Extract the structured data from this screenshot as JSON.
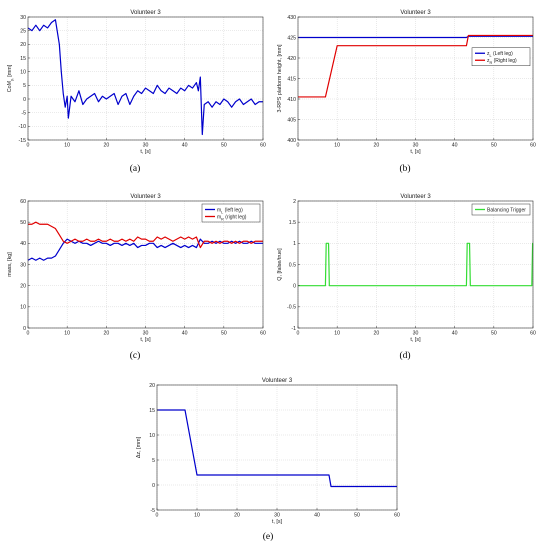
{
  "chart_data": [
    {
      "id": "a",
      "type": "line",
      "title": "Volunteer 3",
      "caption": "(a)",
      "xlabel": "t, [s]",
      "ylabel": "CoM_y, [mm]",
      "xlim": [
        0,
        60
      ],
      "ylim": [
        -15,
        30
      ],
      "xticks": [
        0,
        10,
        20,
        30,
        40,
        50,
        60
      ],
      "yticks": [
        -15,
        -10,
        -5,
        0,
        5,
        10,
        15,
        20,
        25,
        30
      ],
      "grid": true,
      "legend": null,
      "series": [
        {
          "color": "#0000cc",
          "x": [
            0,
            1,
            2,
            3,
            4,
            5,
            6,
            7,
            8,
            8.5,
            9,
            9.5,
            10,
            10.3,
            11,
            12,
            13,
            14,
            15,
            16,
            17,
            18,
            19,
            20,
            21,
            22,
            23,
            24,
            25,
            26,
            27,
            28,
            29,
            30,
            31,
            32,
            33,
            34,
            35,
            36,
            37,
            38,
            39,
            40,
            41,
            42,
            43,
            43.5,
            44,
            44.5,
            45,
            46,
            47,
            48,
            49,
            50,
            51,
            52,
            53,
            54,
            55,
            56,
            57,
            58,
            59,
            60
          ],
          "y": [
            26,
            25,
            27,
            25,
            27,
            26,
            28,
            29,
            20,
            10,
            2,
            -3,
            1,
            -7,
            1,
            -1,
            3,
            -2,
            0,
            1,
            2,
            -1,
            1,
            0,
            1,
            2,
            -2,
            1,
            2,
            -2,
            1,
            3,
            2,
            4,
            3,
            2,
            5,
            3,
            2,
            4,
            3,
            2,
            4,
            3,
            5,
            4,
            6,
            3,
            8,
            -13,
            -2,
            -1,
            -3,
            -1,
            -2,
            0,
            -1,
            -3,
            -1,
            0,
            -2,
            -1,
            0,
            -2,
            -1,
            -1
          ],
          "stroke_width": 1.2
        }
      ]
    },
    {
      "id": "b",
      "type": "line",
      "title": "Volunteer 3",
      "caption": "(b)",
      "xlabel": "t, [s]",
      "ylabel": "3-RPS platform height, [mm]",
      "xlim": [
        0,
        60
      ],
      "ylim": [
        400,
        430
      ],
      "xticks": [
        0,
        10,
        20,
        30,
        40,
        50,
        60
      ],
      "yticks": [
        400,
        405,
        410,
        415,
        420,
        425,
        430
      ],
      "grid": true,
      "legend": "mid-right",
      "series": [
        {
          "name": "z_L (Left leg)",
          "color": "#0000cc",
          "x": [
            0,
            43,
            43.5,
            60
          ],
          "y": [
            425,
            425,
            425.3,
            425.3
          ],
          "stroke_width": 1.2
        },
        {
          "name": "z_R (Right leg)",
          "color": "#e00000",
          "x": [
            0,
            7,
            10,
            43,
            43.5,
            60
          ],
          "y": [
            410.5,
            410.5,
            423,
            423,
            425.5,
            425.5
          ],
          "stroke_width": 1.2
        }
      ]
    },
    {
      "id": "c",
      "type": "line",
      "title": "Volunteer 3",
      "caption": "(c)",
      "xlabel": "t, [s]",
      "ylabel": "mass, [kg]",
      "xlim": [
        0,
        60
      ],
      "ylim": [
        0,
        60
      ],
      "xticks": [
        0,
        10,
        20,
        30,
        40,
        50,
        60
      ],
      "yticks": [
        0,
        10,
        20,
        30,
        40,
        50,
        60
      ],
      "grid": true,
      "legend": "top-right",
      "series": [
        {
          "name": "m_L (left leg)",
          "color": "#0000cc",
          "x": [
            0,
            1,
            2,
            3,
            4,
            5,
            6,
            7,
            8,
            9,
            10,
            11,
            12,
            13,
            14,
            15,
            16,
            17,
            18,
            19,
            20,
            21,
            22,
            23,
            24,
            25,
            26,
            27,
            28,
            29,
            30,
            31,
            32,
            33,
            34,
            35,
            36,
            37,
            38,
            39,
            40,
            41,
            42,
            43,
            44,
            45,
            46,
            47,
            48,
            49,
            50,
            51,
            52,
            53,
            54,
            55,
            56,
            57,
            58,
            59,
            60
          ],
          "y": [
            32,
            33,
            32,
            33,
            32,
            33,
            33,
            34,
            37,
            40,
            42,
            41,
            40,
            41,
            40,
            40,
            39,
            40,
            41,
            40,
            40,
            39,
            40,
            40,
            39,
            40,
            39,
            40,
            38,
            39,
            39,
            40,
            40,
            38,
            39,
            38,
            39,
            40,
            39,
            38,
            39,
            38,
            39,
            38,
            42,
            40,
            40,
            41,
            40,
            41,
            40,
            40,
            41,
            40,
            41,
            40,
            40,
            41,
            40,
            40,
            40
          ],
          "stroke_width": 1.2
        },
        {
          "name": "m_R (right leg)",
          "color": "#e00000",
          "x": [
            0,
            1,
            2,
            3,
            4,
            5,
            6,
            7,
            8,
            9,
            10,
            11,
            12,
            13,
            14,
            15,
            16,
            17,
            18,
            19,
            20,
            21,
            22,
            23,
            24,
            25,
            26,
            27,
            28,
            29,
            30,
            31,
            32,
            33,
            34,
            35,
            36,
            37,
            38,
            39,
            40,
            41,
            42,
            43,
            44,
            45,
            46,
            47,
            48,
            49,
            50,
            51,
            52,
            53,
            54,
            55,
            56,
            57,
            58,
            59,
            60
          ],
          "y": [
            49,
            49,
            50,
            49,
            49,
            49,
            48,
            47,
            44,
            41,
            40,
            41,
            42,
            41,
            41,
            42,
            41,
            41,
            42,
            41,
            41,
            42,
            41,
            41,
            42,
            41,
            42,
            41,
            43,
            42,
            42,
            41,
            41,
            43,
            42,
            43,
            42,
            41,
            42,
            43,
            42,
            43,
            42,
            43,
            38,
            41,
            41,
            40,
            41,
            40,
            41,
            41,
            40,
            41,
            40,
            41,
            41,
            40,
            41,
            41,
            41
          ],
          "stroke_width": 1.2
        }
      ]
    },
    {
      "id": "d",
      "type": "line",
      "title": "Volunteer 3",
      "caption": "(d)",
      "xlabel": "t, [s]",
      "ylabel": "Q, [false/true]",
      "xlim": [
        0,
        60
      ],
      "ylim": [
        -1,
        2
      ],
      "xticks": [
        0,
        10,
        20,
        30,
        40,
        50,
        60
      ],
      "yticks": [
        -1,
        -0.5,
        0,
        0.5,
        1,
        1.5,
        2
      ],
      "grid": true,
      "legend": "top-right",
      "series": [
        {
          "name": "Balancing Trigger",
          "color": "#33dd33",
          "x": [
            0,
            7,
            7.2,
            7.8,
            8,
            43,
            43.2,
            43.8,
            44,
            59.7,
            59.9,
            60
          ],
          "y": [
            0,
            0,
            1,
            1,
            0,
            0,
            1,
            1,
            0,
            0,
            1,
            1
          ],
          "stroke_width": 1.2
        }
      ]
    },
    {
      "id": "e",
      "type": "line",
      "title": "Volunteer 3",
      "caption": "(e)",
      "xlabel": "t, [s]",
      "ylabel": "Δz, [mm]",
      "xlim": [
        0,
        60
      ],
      "ylim": [
        -5,
        20
      ],
      "xticks": [
        0,
        10,
        20,
        30,
        40,
        50,
        60
      ],
      "yticks": [
        -5,
        0,
        5,
        10,
        15,
        20
      ],
      "grid": true,
      "legend": null,
      "series": [
        {
          "color": "#0000cc",
          "x": [
            0,
            7,
            10,
            43,
            43.5,
            60
          ],
          "y": [
            15,
            15,
            2,
            2,
            -0.3,
            -0.3
          ],
          "stroke_width": 1.2
        }
      ]
    }
  ]
}
